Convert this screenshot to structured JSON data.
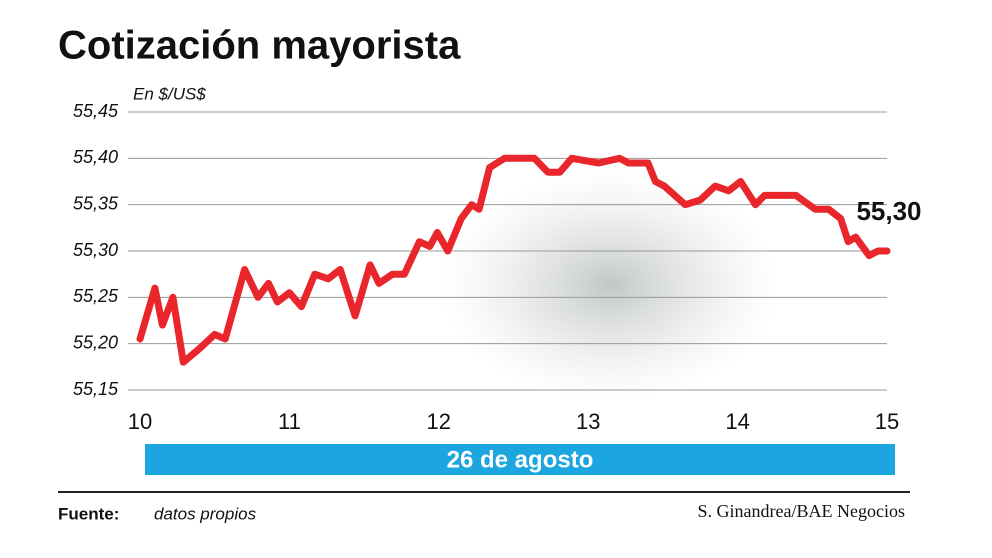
{
  "chart_data": {
    "type": "line",
    "title": "Cotización mayorista",
    "subtitle": "En $/US$",
    "annotation": "55,30",
    "x_axis_label": "26 de agosto",
    "source_label": "Fuente:",
    "source": "datos propios",
    "credit": "S. Ginandrea/BAE Negocios",
    "xlim": [
      10,
      15
    ],
    "xticks": [
      10,
      11,
      12,
      13,
      14,
      15
    ],
    "ylim": [
      55.15,
      55.45
    ],
    "yticks": [
      {
        "value": 55.15,
        "label": "55,15"
      },
      {
        "value": 55.2,
        "label": "55,20"
      },
      {
        "value": 55.25,
        "label": "55,25"
      },
      {
        "value": 55.3,
        "label": "55,30"
      },
      {
        "value": 55.35,
        "label": "55,35"
      },
      {
        "value": 55.4,
        "label": "55,40"
      },
      {
        "value": 55.45,
        "label": "55,45"
      }
    ],
    "grid": true,
    "series": [
      {
        "color": "#e8262b",
        "x": [
          10.0,
          10.1,
          10.15,
          10.22,
          10.29,
          10.4,
          10.5,
          10.57,
          10.7,
          10.79,
          10.86,
          10.92,
          11.0,
          11.08,
          11.17,
          11.26,
          11.34,
          11.44,
          11.54,
          11.6,
          11.69,
          11.77,
          11.87,
          11.94,
          11.99,
          12.06,
          12.15,
          12.22,
          12.27,
          12.34,
          12.44,
          12.64,
          12.73,
          12.81,
          12.89,
          13.07,
          13.21,
          13.27,
          13.4,
          13.45,
          13.51,
          13.65,
          13.75,
          13.85,
          13.94,
          14.02,
          14.12,
          14.18,
          14.39,
          14.52,
          14.61,
          14.69,
          14.74,
          14.79,
          14.88,
          14.94,
          15.0
        ],
        "values": [
          55.205,
          55.26,
          55.22,
          55.25,
          55.18,
          55.195,
          55.21,
          55.205,
          55.28,
          55.25,
          55.265,
          55.245,
          55.255,
          55.24,
          55.275,
          55.27,
          55.28,
          55.23,
          55.285,
          55.265,
          55.275,
          55.275,
          55.31,
          55.305,
          55.32,
          55.3,
          55.335,
          55.35,
          55.345,
          55.39,
          55.4,
          55.4,
          55.385,
          55.385,
          55.4,
          55.395,
          55.4,
          55.395,
          55.395,
          55.375,
          55.37,
          55.35,
          55.355,
          55.37,
          55.365,
          55.375,
          55.35,
          55.36,
          55.36,
          55.345,
          55.345,
          55.335,
          55.31,
          55.315,
          55.295,
          55.3,
          55.3
        ]
      }
    ]
  }
}
